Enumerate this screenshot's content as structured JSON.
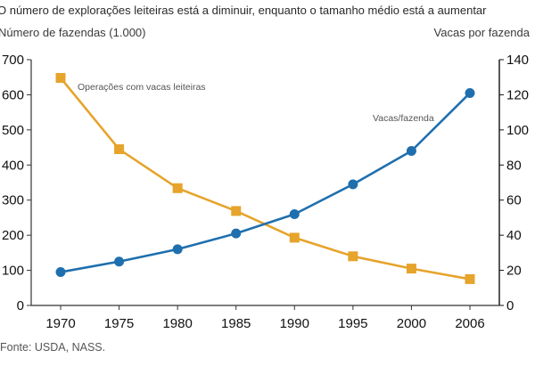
{
  "title": "O número de explorações leiteiras está a diminuir, enquanto o tamanho médio está a aumentar",
  "source": "Fonte: USDA, NASS.",
  "chart_data": {
    "type": "line",
    "title": "O número de explorações leiteiras está a diminuir, enquanto o tamanho médio está a aumentar",
    "xlabel": "",
    "ylabel_left": "Número de fazendas (1.000)",
    "ylabel_right": "Vacas por fazenda",
    "categories": [
      "1970",
      "1975",
      "1980",
      "1985",
      "1990",
      "1995",
      "2000",
      "2006"
    ],
    "ylim_left": [
      0,
      700
    ],
    "yticks_left": [
      0,
      100,
      200,
      300,
      400,
      500,
      600,
      700
    ],
    "ylim_right": [
      0,
      140
    ],
    "yticks_right": [
      0,
      20,
      40,
      60,
      80,
      100,
      120,
      140
    ],
    "grid": false,
    "series": [
      {
        "name": "Operações com vacas leiteiras",
        "axis": "left",
        "marker": "square",
        "color": "#E6A42C",
        "values": [
          648,
          445,
          334,
          269,
          193,
          140,
          105,
          75
        ]
      },
      {
        "name": "Vacas/fazenda",
        "axis": "right",
        "marker": "circle",
        "color": "#1F6FAE",
        "values": [
          19,
          25,
          32,
          41,
          52,
          69,
          88,
          121
        ]
      }
    ]
  }
}
